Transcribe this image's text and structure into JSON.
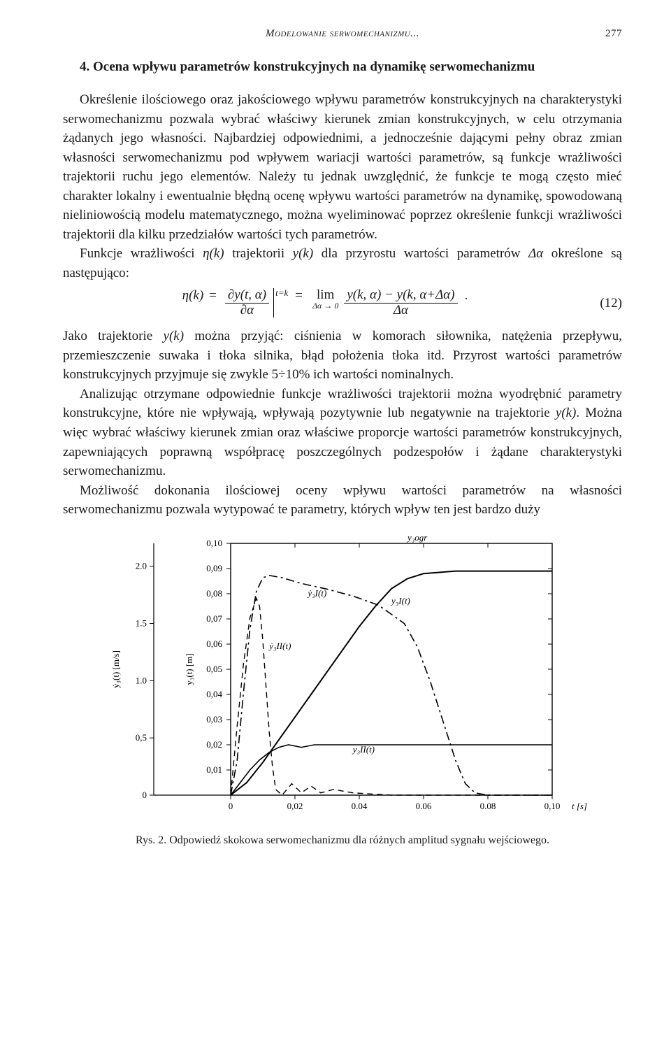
{
  "header": {
    "running_title": "Modelowanie serwomechanizmu...",
    "page_number": "277"
  },
  "section": {
    "heading": "4. Ocena wpływu parametrów konstrukcyjnych na dynamikę serwomechanizmu"
  },
  "paragraphs": {
    "p1": "Określenie ilościowego oraz jakościowego wpływu parametrów konstrukcyjnych na charakterystyki serwomechanizmu pozwala wybrać właściwy kierunek zmian konstrukcyjnych, w celu otrzymania żądanych jego własności. Najbardziej odpowiednimi, a jednocześnie dającymi pełny obraz zmian własności serwomechanizmu pod wpływem wariacji wartości parametrów, są funkcje wrażliwości trajektorii ruchu jego elementów. Należy tu jednak uwzględnić, że funkcje te mogą często mieć charakter lokalny i ewentualnie błędną ocenę wpływu wartości parametrów na dynamikę, spowodowaną nieliniowością modelu matematycznego, można wyeliminować poprzez określenie funkcji wrażliwości trajektorii dla kilku przedziałów wartości tych parametrów.",
    "p2a": "Funkcje wrażliwości ",
    "p2b": " trajektorii ",
    "p2c": " dla przyrostu wartości parametrów ",
    "p2d": " określone są następująco:",
    "p3a": "Jako trajektorie ",
    "p3b": " można przyjąć: ciśnienia w komorach siłownika, natężenia przepływu, przemieszczenie suwaka i tłoka silnika, błąd położenia tłoka itd. Przyrost wartości parametrów konstrukcyjnych przyjmuje się zwykle 5÷10% ich wartości nominalnych.",
    "p4a": "Analizując otrzymane odpowiednie funkcje wrażliwości trajektorii można wyodrębnić parametry konstrukcyjne, które nie wpływają, wpływają pozytywnie lub negatywnie na trajektorie ",
    "p4b": ". Można więc wybrać właściwy kierunek zmian oraz właściwe proporcje wartości parametrów konstrukcyjnych, zapewniających poprawną współpracę poszczególnych podzespołów i żądane charakterystyki serwomechanizmu.",
    "p5": "Możliwość dokonania ilościowej oceny wpływu wartości parametrów na własności serwomechanizmu pozwala wytypować te parametry, których wpływ ten jest bardzo duży"
  },
  "inline": {
    "eta_k": "η(k)",
    "y_k": "y(k)",
    "delta_alpha": "Δα"
  },
  "equation": {
    "lhs": "η(k)",
    "eq1": "=",
    "num1": "∂y(t, α)",
    "den1": "∂α",
    "bar_sub": "t=k",
    "eq2": "=",
    "lim_top": "lim",
    "lim_bot": "Δα → 0",
    "num2": "y(k, α) − y(k, α+Δα)",
    "den2": "Δα",
    "tail": ".",
    "number": "(12)"
  },
  "figure": {
    "caption": "Rys. 2. Odpowiedź skokowa serwomechanizmu dla różnych amplitud sygnału wejściowego.",
    "axes": {
      "x": {
        "min": 0,
        "max": 0.1,
        "ticks": [
          0,
          0.02,
          0.04,
          0.06,
          0.08,
          0.1
        ],
        "tick_labels": [
          "0",
          "0,02",
          "0.04",
          "0.06",
          "0.08",
          "0,10"
        ],
        "label": "t [s]"
      },
      "y_right": {
        "min": 0,
        "max": 0.1,
        "ticks": [
          0.01,
          0.02,
          0.03,
          0.04,
          0.05,
          0.06,
          0.07,
          0.08,
          0.09,
          0.1
        ],
        "tick_labels": [
          "0,01",
          "0,02",
          "0,03",
          "0,04",
          "0,05",
          "0,06",
          "0,07",
          "0,08",
          "0,09",
          "0,10"
        ]
      },
      "y_left": {
        "min": 0,
        "max": 2.2,
        "ticks": [
          0,
          0.5,
          1.0,
          1.5,
          2.0
        ],
        "tick_labels": [
          "0",
          "0,5",
          "1.0",
          "1.5",
          "2.0"
        ]
      },
      "y_right_label": "y₃(t) [m]",
      "y_left_label": "ẏ₃(t) [m/s]"
    },
    "annotations": {
      "y3ogr": "y₃ogr",
      "y3I": "y₃I(t)",
      "y3Idot": "ẏ₃I(t)",
      "y3II": "y₃II(t)",
      "y3IIdot": "ẏ₃II(t)"
    },
    "series": {
      "y3ogr_line": {
        "style": "dashed",
        "width": 1,
        "color": "#000000",
        "points": [
          [
            0,
            0.1
          ],
          [
            0.1,
            0.1
          ]
        ]
      },
      "y3I_solid": {
        "style": "solid",
        "width": 2,
        "color": "#000000",
        "points": [
          [
            0,
            0
          ],
          [
            0.005,
            0.005
          ],
          [
            0.01,
            0.013
          ],
          [
            0.015,
            0.022
          ],
          [
            0.02,
            0.031
          ],
          [
            0.025,
            0.04
          ],
          [
            0.03,
            0.049
          ],
          [
            0.035,
            0.058
          ],
          [
            0.04,
            0.067
          ],
          [
            0.045,
            0.075
          ],
          [
            0.05,
            0.082
          ],
          [
            0.055,
            0.086
          ],
          [
            0.06,
            0.088
          ],
          [
            0.07,
            0.089
          ],
          [
            0.08,
            0.089
          ],
          [
            0.1,
            0.089
          ]
        ]
      },
      "y3Idot_dashdot": {
        "style": "dashdot",
        "width": 1.6,
        "color": "#000000",
        "scale": "left",
        "points": [
          [
            0,
            0
          ],
          [
            0.002,
            0.3
          ],
          [
            0.004,
            0.9
          ],
          [
            0.006,
            1.45
          ],
          [
            0.008,
            1.78
          ],
          [
            0.01,
            1.9
          ],
          [
            0.012,
            1.92
          ],
          [
            0.016,
            1.9
          ],
          [
            0.022,
            1.85
          ],
          [
            0.03,
            1.8
          ],
          [
            0.038,
            1.74
          ],
          [
            0.046,
            1.66
          ],
          [
            0.054,
            1.5
          ],
          [
            0.058,
            1.3
          ],
          [
            0.062,
            1.0
          ],
          [
            0.066,
            0.65
          ],
          [
            0.07,
            0.3
          ],
          [
            0.073,
            0.1
          ],
          [
            0.076,
            0.02
          ],
          [
            0.08,
            0.0
          ],
          [
            0.1,
            0.0
          ]
        ]
      },
      "y3II_solid": {
        "style": "solid",
        "width": 1.6,
        "color": "#000000",
        "points": [
          [
            0,
            0
          ],
          [
            0.003,
            0.005
          ],
          [
            0.006,
            0.01
          ],
          [
            0.009,
            0.014
          ],
          [
            0.012,
            0.017
          ],
          [
            0.015,
            0.019
          ],
          [
            0.018,
            0.02
          ],
          [
            0.022,
            0.019
          ],
          [
            0.026,
            0.02
          ],
          [
            0.03,
            0.02
          ],
          [
            0.036,
            0.02
          ],
          [
            0.045,
            0.02
          ],
          [
            0.06,
            0.02
          ],
          [
            0.1,
            0.02
          ]
        ]
      },
      "y3IIdot_dashed": {
        "style": "dashed",
        "width": 1.4,
        "color": "#000000",
        "scale": "left",
        "points": [
          [
            0,
            0
          ],
          [
            0.002,
            0.6
          ],
          [
            0.004,
            1.15
          ],
          [
            0.006,
            1.55
          ],
          [
            0.008,
            1.72
          ],
          [
            0.009,
            1.65
          ],
          [
            0.01,
            1.35
          ],
          [
            0.011,
            0.95
          ],
          [
            0.012,
            0.55
          ],
          [
            0.013,
            0.25
          ],
          [
            0.014,
            0.05
          ],
          [
            0.016,
            0.0
          ],
          [
            0.019,
            0.1
          ],
          [
            0.022,
            0.02
          ],
          [
            0.025,
            0.08
          ],
          [
            0.028,
            0.02
          ],
          [
            0.032,
            0.05
          ],
          [
            0.038,
            0.02
          ],
          [
            0.05,
            0.0
          ],
          [
            0.1,
            0.0
          ]
        ]
      }
    },
    "colors": {
      "axis": "#000000",
      "background": "#ffffff"
    },
    "font_size_axis": 13
  }
}
